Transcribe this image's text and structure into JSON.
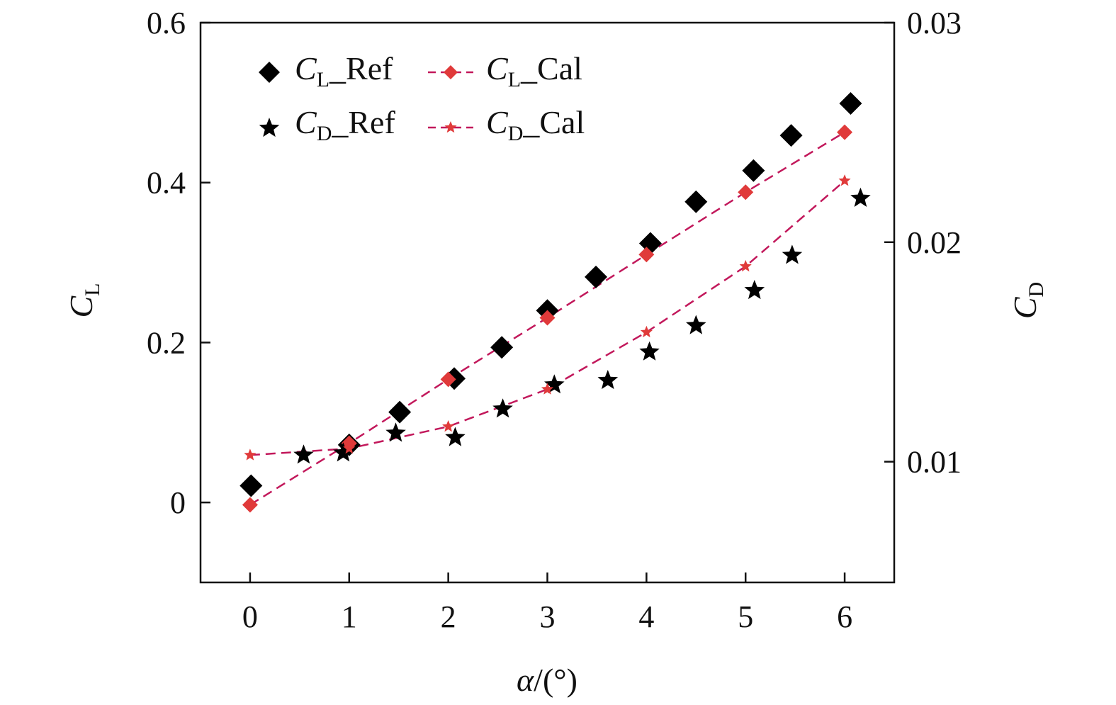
{
  "chart_data": {
    "type": "scatter",
    "x_label": {
      "prefix": "α",
      "suffix": "/(°)"
    },
    "y_left_label": {
      "main": "C",
      "sub": "L"
    },
    "y_right_label": {
      "main": "C",
      "sub": "D"
    },
    "x_range": [
      -0.5,
      6.5
    ],
    "y_left_range": [
      -0.1,
      0.6
    ],
    "y_right_range": [
      0.0045,
      0.03
    ],
    "x_ticks": [
      "0",
      "1",
      "2",
      "3",
      "4",
      "5",
      "6"
    ],
    "y_left_ticks": [
      "0",
      "0.2",
      "0.4",
      "0.6"
    ],
    "y_right_ticks": [
      "0.01",
      "0.02",
      "0.03"
    ],
    "grid": false,
    "legend_position": "top-left",
    "series": [
      {
        "name_main": "C",
        "name_sub": "L",
        "name_suffix": "_Ref",
        "axis": "left",
        "marker": "diamond",
        "line": false,
        "color": "#000000",
        "points": [
          [
            0.01,
            0.021
          ],
          [
            1.0,
            0.072
          ],
          [
            1.51,
            0.113
          ],
          [
            2.06,
            0.155
          ],
          [
            2.54,
            0.194
          ],
          [
            3.0,
            0.24
          ],
          [
            3.49,
            0.282
          ],
          [
            4.04,
            0.324
          ],
          [
            4.5,
            0.376
          ],
          [
            5.08,
            0.415
          ],
          [
            5.46,
            0.459
          ],
          [
            6.06,
            0.499
          ]
        ]
      },
      {
        "name_main": "C",
        "name_sub": "L",
        "name_suffix": "_Cal",
        "axis": "left",
        "marker": "diamond",
        "line": true,
        "color": "#e03a3a",
        "line_color": "#c2185b",
        "points": [
          [
            0.0,
            -0.003
          ],
          [
            1.0,
            0.074
          ],
          [
            2.0,
            0.154
          ],
          [
            3.0,
            0.231
          ],
          [
            4.0,
            0.31
          ],
          [
            5.0,
            0.388
          ],
          [
            6.0,
            0.463
          ]
        ]
      },
      {
        "name_main": "C",
        "name_sub": "D",
        "name_suffix": "_Ref",
        "axis": "right",
        "marker": "star",
        "line": false,
        "color": "#000000",
        "points": [
          [
            0.54,
            0.0103
          ],
          [
            0.94,
            0.0104
          ],
          [
            1.47,
            0.0113
          ],
          [
            2.07,
            0.0111
          ],
          [
            2.55,
            0.0124
          ],
          [
            3.07,
            0.0135
          ],
          [
            3.61,
            0.0137
          ],
          [
            4.03,
            0.015
          ],
          [
            4.5,
            0.0162
          ],
          [
            5.09,
            0.0178
          ],
          [
            5.47,
            0.0194
          ],
          [
            6.16,
            0.022
          ]
        ]
      },
      {
        "name_main": "C",
        "name_sub": "D",
        "name_suffix": "_Cal",
        "axis": "right",
        "marker": "star",
        "line": true,
        "color": "#e03a3a",
        "line_color": "#c2185b",
        "points": [
          [
            0.0,
            0.0103
          ],
          [
            1.0,
            0.0106
          ],
          [
            2.0,
            0.0116
          ],
          [
            3.0,
            0.0133
          ],
          [
            4.0,
            0.0159
          ],
          [
            5.0,
            0.0189
          ],
          [
            6.0,
            0.0228
          ]
        ]
      }
    ]
  }
}
